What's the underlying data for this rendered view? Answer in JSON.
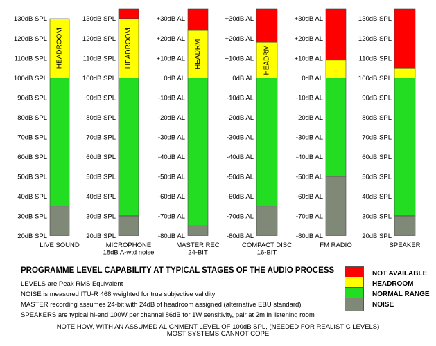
{
  "colors": {
    "not_available": "#ff0000",
    "headroom": "#ffff00",
    "normal_range": "#22dd22",
    "noise": "#808878",
    "alignment_line": "#000000"
  },
  "columns": [
    {
      "caption_lines": [
        "LIVE SOUND"
      ],
      "ticks": [
        "130dB SPL",
        "120dB SPL",
        "110dB SPL",
        "100dB SPL",
        "90dB SPL",
        "80dB SPL",
        "70dB SPL",
        "60dB SPL",
        "50dB SPL",
        "40dB SPL",
        "30dB SPL",
        "20dB SPL"
      ],
      "segments_db": {
        "not_available": [
          130,
          130
        ],
        "headroom": [
          100,
          130
        ],
        "normal_range": [
          35,
          100
        ],
        "noise": [
          20,
          35
        ]
      },
      "bar_label": "HEADROOM"
    },
    {
      "caption_lines": [
        "MICROPHONE",
        "18dB A-wtd noise"
      ],
      "ticks": [
        "130dB SPL",
        "120dB SPL",
        "110dB SPL",
        "100dB SPL",
        "90dB SPL",
        "80dB SPL",
        "70dB SPL",
        "60dB SPL",
        "50dB SPL",
        "40dB SPL",
        "30dB SPL",
        "20dB SPL"
      ],
      "segments_db": {
        "not_available": [
          130,
          135
        ],
        "headroom": [
          100,
          130
        ],
        "normal_range": [
          30,
          100
        ],
        "noise": [
          20,
          30
        ]
      },
      "bar_label": "HEADROOM"
    },
    {
      "caption_lines": [
        "MASTER REC",
        "24-BIT"
      ],
      "ticks": [
        "+30dB AL",
        "+20dB AL",
        "+10dB AL",
        "0dB AL",
        "-10dB AL",
        "-20dB AL",
        "-30dB AL",
        "-40dB AL",
        "-50dB AL",
        "-60dB AL",
        "-70dB AL",
        "-80dB AL"
      ],
      "segments_db": {
        "not_available": [
          124,
          135
        ],
        "headroom": [
          100,
          124
        ],
        "normal_range": [
          25,
          100
        ],
        "noise": [
          20,
          25
        ]
      },
      "bar_label": "HEADRM"
    },
    {
      "caption_lines": [
        "COMPACT DISC",
        "16-BIT"
      ],
      "ticks": [
        "+30dB AL",
        "+20dB AL",
        "+10dB AL",
        "0dB AL",
        "-10dB AL",
        "-20dB AL",
        "-30dB AL",
        "-40dB AL",
        "-50dB AL",
        "-60dB AL",
        "-70dB AL",
        "-80dB AL"
      ],
      "segments_db": {
        "not_available": [
          118,
          135
        ],
        "headroom": [
          100,
          118
        ],
        "normal_range": [
          35,
          100
        ],
        "noise": [
          20,
          35
        ]
      },
      "bar_label": "HEADRM"
    },
    {
      "caption_lines": [
        "FM RADIO"
      ],
      "ticks": [
        "+30dB AL",
        "+20dB AL",
        "+10dB AL",
        "0dB AL",
        "-10dB AL",
        "-20dB AL",
        "-30dB AL",
        "-40dB AL",
        "-50dB AL",
        "-60dB AL",
        "-70dB AL",
        "-80dB AL"
      ],
      "segments_db": {
        "not_available": [
          109,
          135
        ],
        "headroom": [
          100,
          109
        ],
        "normal_range": [
          50,
          100
        ],
        "noise": [
          20,
          50
        ]
      },
      "bar_label": ""
    },
    {
      "caption_lines": [
        "SPEAKER"
      ],
      "ticks": [
        "130dB SPL",
        "120dB SPL",
        "110dB SPL",
        "100dB SPL",
        "90dB SPL",
        "80dB SPL",
        "70dB SPL",
        "60dB SPL",
        "50dB SPL",
        "40dB SPL",
        "30dB SPL",
        "20dB SPL"
      ],
      "segments_db": {
        "not_available": [
          105,
          135
        ],
        "headroom": [
          100,
          105
        ],
        "normal_range": [
          30,
          100
        ],
        "noise": [
          20,
          30
        ]
      },
      "bar_label": ""
    }
  ],
  "title": "PROGRAMME LEVEL CAPABILITY AT TYPICAL STAGES OF THE AUDIO PROCESS",
  "notes": [
    "LEVELS are Peak RMS Equivalent",
    "NOISE is measured ITU-R 468 weighted for true subjective validity",
    "MASTER recording assumes 24-bit with 24dB of headroom assigned  (alternative EBU standard)",
    "SPEAKERS are typical hi-end 100W per channel 86dB for 1W sensitivity, pair at 2m in listening room"
  ],
  "footer": [
    "NOTE HOW, WITH AN ASSUMED ALIGNMENT LEVEL OF 100dB SPL, (NEEDED FOR REALISTIC LEVELS)",
    "MOST SYSTEMS CANNOT COPE"
  ],
  "legend": [
    {
      "label": "NOT AVAILABLE",
      "color_key": "not_available"
    },
    {
      "label": "HEADROOM",
      "color_key": "headroom"
    },
    {
      "label": "NORMAL RANGE",
      "color_key": "normal_range"
    },
    {
      "label": "NOISE",
      "color_key": "noise"
    }
  ]
}
